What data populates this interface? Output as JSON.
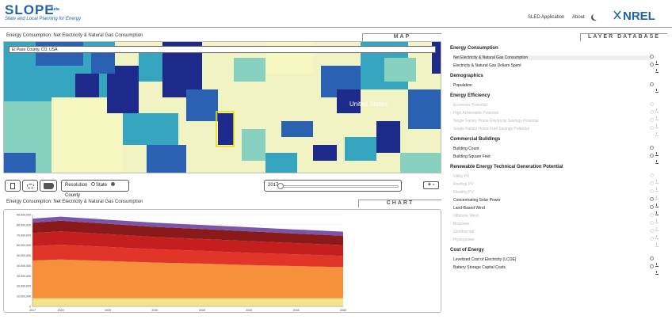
{
  "header": {
    "title": "SLOPE",
    "beta": "Beta",
    "subtitle": "State and Local Planning for Energy",
    "nav": [
      "SLED Application",
      "About"
    ],
    "logo": "NREL"
  },
  "map_panel": {
    "title": "Energy Consumption: Net Electricity & Natural Gas Consumption",
    "tab": "MAP",
    "search_value": "El Paso County, CO, USA",
    "country_label": "United States",
    "resolution_label": "Resolution",
    "res_options": [
      "State",
      "County"
    ],
    "selected": "County",
    "year": "2017",
    "zoom": "+ -",
    "colors": [
      "#1d2a8c",
      "#2a61b3",
      "#36a6c0",
      "#86d1c0",
      "#f7f7c2"
    ]
  },
  "chart_panel": {
    "title": "Energy Consumption: Net Electricity & Natural Gas Consumption",
    "tab": "CHART"
  },
  "layers": {
    "tab": "LAYER DATABASE",
    "sections": [
      {
        "title": "Energy Consumption",
        "items": [
          {
            "label": "Net Electricity & Natural Gas Consumption",
            "enabled": true,
            "selected": true
          },
          {
            "label": "Electricity & Natural Gas Dollars Spent",
            "enabled": true
          }
        ]
      },
      {
        "title": "Demographics",
        "items": [
          {
            "label": "Population",
            "enabled": true
          }
        ]
      },
      {
        "title": "Energy Efficiency",
        "items": [
          {
            "label": "Economic Potential",
            "enabled": false
          },
          {
            "label": "High Achievable Potential",
            "enabled": false
          },
          {
            "label": "Single Family Home Electricity Savings Potential",
            "enabled": false
          },
          {
            "label": "Single Family Home Fuel Savings Potential",
            "enabled": false
          }
        ]
      },
      {
        "title": "Commercial Buildings",
        "items": [
          {
            "label": "Building Count",
            "enabled": true
          },
          {
            "label": "Building Square Feet",
            "enabled": true
          }
        ]
      },
      {
        "title": "Renewable Energy Technical Generation Potential",
        "items": [
          {
            "label": "Utility PV",
            "enabled": false
          },
          {
            "label": "Rooftop PV",
            "enabled": false
          },
          {
            "label": "Floating PV",
            "enabled": false
          },
          {
            "label": "Concentrating Solar Power",
            "enabled": true
          },
          {
            "label": "Land-Based Wind",
            "enabled": true
          },
          {
            "label": "Offshore Wind",
            "enabled": false
          },
          {
            "label": "Biopower",
            "enabled": false
          },
          {
            "label": "Geothermal",
            "enabled": false
          },
          {
            "label": "Hydropower",
            "enabled": false
          }
        ]
      },
      {
        "title": "Cost of Energy",
        "items": [
          {
            "label": "Levelized Cost of Electricity (LCOE)",
            "enabled": true
          },
          {
            "label": "Battery Storage Capital Costs",
            "enabled": true
          }
        ]
      }
    ]
  },
  "chart_data": {
    "type": "area",
    "x": [
      2017,
      2020,
      2025,
      2030,
      2035,
      2040,
      2045,
      2050
    ],
    "ylim": [
      0,
      90000000
    ],
    "yticks": [
      "90,000,000",
      "80,000,000",
      "70,000,000",
      "60,000,000",
      "50,000,000",
      "40,000,000",
      "30,000,000",
      "20,000,000",
      "10,000,000",
      "0"
    ],
    "series": [
      {
        "color": "#f5e58a",
        "values": [
          8000000,
          8000000,
          8000000,
          8000000,
          8000000,
          8000000,
          8000000,
          8000000
        ]
      },
      {
        "color": "#f7903a",
        "values": [
          37000000,
          38000000,
          36500000,
          35000000,
          34000000,
          32500000,
          31500000,
          30500000
        ]
      },
      {
        "color": "#e03528",
        "values": [
          14000000,
          14500000,
          13800000,
          13000000,
          12500000,
          12000000,
          11500000,
          11000000
        ]
      },
      {
        "color": "#c41e1e",
        "values": [
          13000000,
          13000000,
          12500000,
          12000000,
          11500000,
          11500000,
          11000000,
          10500000
        ]
      },
      {
        "color": "#8a1a1a",
        "values": [
          10000000,
          10500000,
          10200000,
          10000000,
          9800000,
          9600000,
          9400000,
          9200000
        ]
      },
      {
        "color": "#7a55a8",
        "values": [
          4000000,
          4000000,
          4000000,
          4000000,
          4000000,
          4000000,
          4000000,
          4000000
        ]
      }
    ]
  }
}
